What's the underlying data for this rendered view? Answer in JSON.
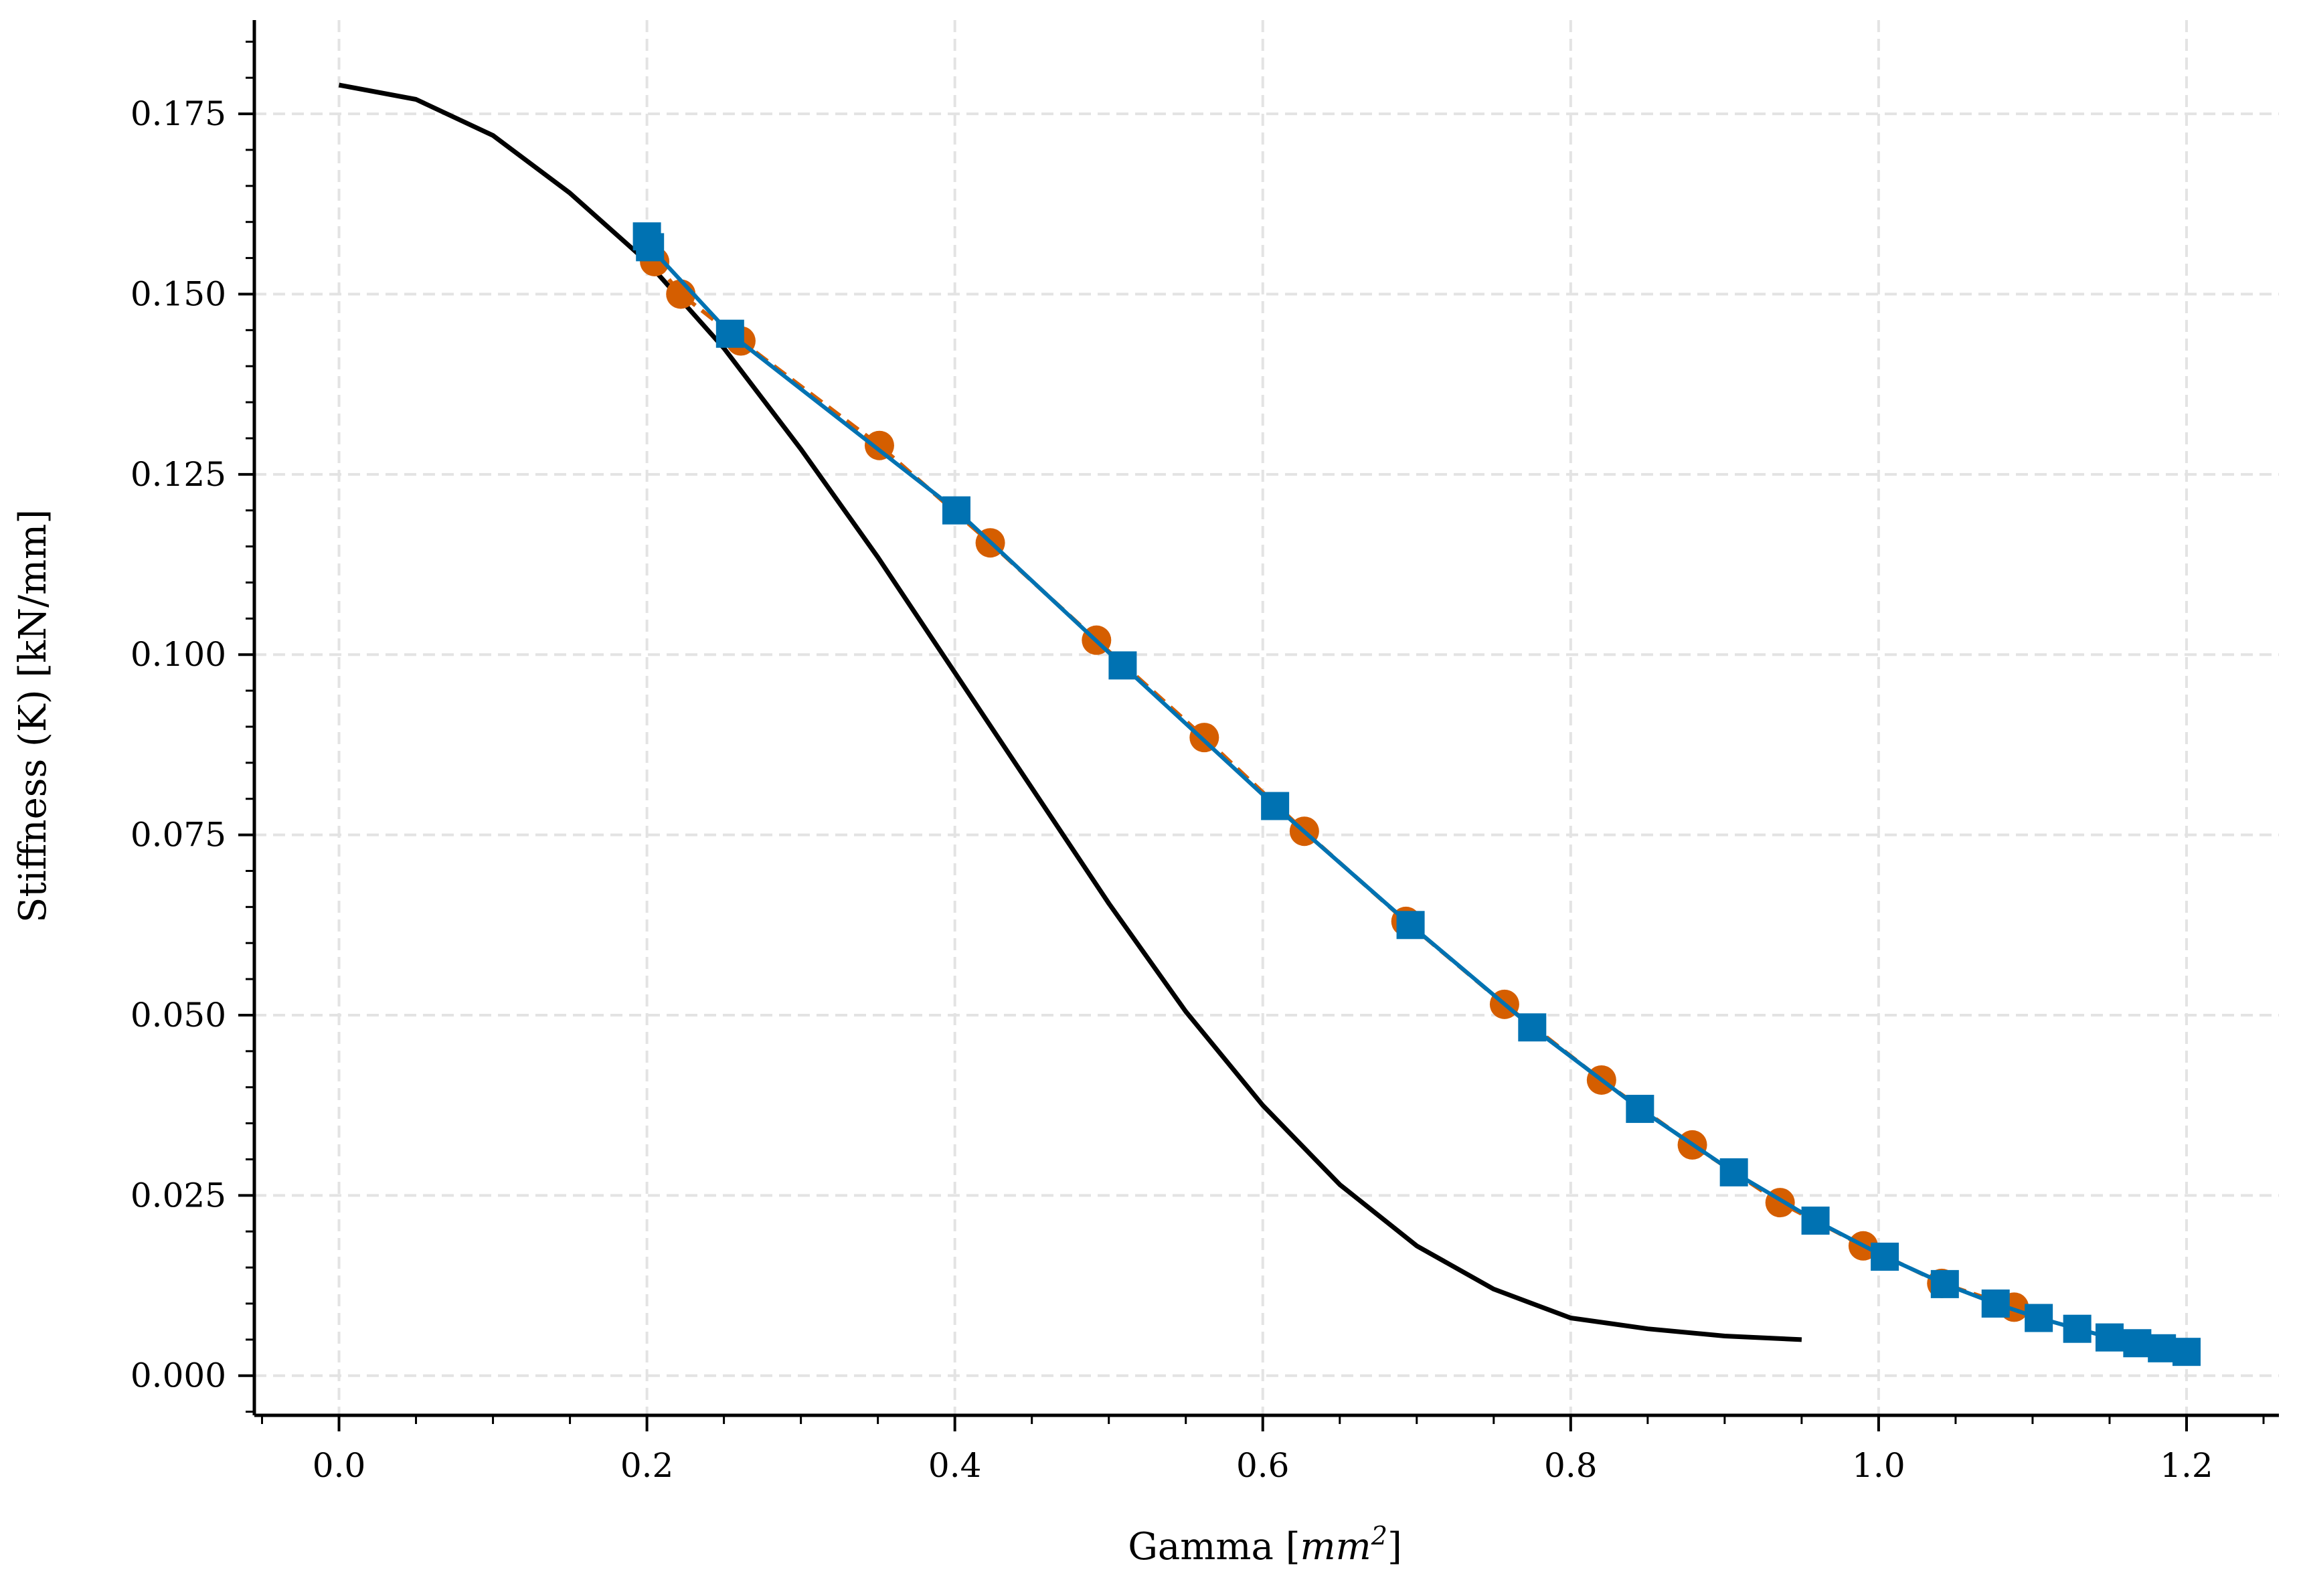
{
  "chart_data": {
    "type": "line",
    "xlabel": {
      "text": "Gamma [",
      "unit_base": "mm",
      "unit_exp": "2",
      "close": "]"
    },
    "ylabel": "Stiffness (K) [kN/mm]",
    "xlim": [
      -0.055,
      1.26
    ],
    "ylim": [
      -0.0055,
      0.188
    ],
    "grid": true,
    "xticks": [
      0.0,
      0.2,
      0.4,
      0.6,
      0.8,
      1.0,
      1.2
    ],
    "xtick_labels": [
      "0.0",
      "0.2",
      "0.4",
      "0.6",
      "0.8",
      "1.0",
      "1.2"
    ],
    "yticks": [
      0.0,
      0.025,
      0.05,
      0.075,
      0.1,
      0.125,
      0.15,
      0.175
    ],
    "ytick_labels": [
      "0.000",
      "0.025",
      "0.050",
      "0.075",
      "0.100",
      "0.125",
      "0.150",
      "0.175"
    ],
    "series": [
      {
        "style": "line",
        "color": "#000000",
        "x": [
          0.0,
          0.05,
          0.1,
          0.15,
          0.2,
          0.25,
          0.3,
          0.35,
          0.4,
          0.45,
          0.5,
          0.55,
          0.6,
          0.65,
          0.7,
          0.75,
          0.8,
          0.85,
          0.9,
          0.95
        ],
        "y": [
          0.179,
          0.177,
          0.172,
          0.164,
          0.1545,
          0.1425,
          0.1285,
          0.1135,
          0.0975,
          0.0815,
          0.0655,
          0.0505,
          0.0375,
          0.0265,
          0.018,
          0.012,
          0.008,
          0.0065,
          0.0055,
          0.005
        ]
      },
      {
        "style": "line-dashed-markers",
        "marker": "circle",
        "color": "#d55e00",
        "x": [
          0.205,
          0.222,
          0.261,
          0.351,
          0.423,
          0.492,
          0.562,
          0.627,
          0.693,
          0.757,
          0.82,
          0.879,
          0.936,
          0.99,
          1.041,
          1.088
        ],
        "y": [
          0.1545,
          0.15,
          0.1435,
          0.129,
          0.1155,
          0.102,
          0.0885,
          0.0755,
          0.063,
          0.0515,
          0.041,
          0.032,
          0.024,
          0.018,
          0.0128,
          0.0095
        ]
      },
      {
        "style": "line-markers",
        "marker": "square",
        "color": "#0072b2",
        "x": [
          0.2,
          0.202,
          0.254,
          0.401,
          0.509,
          0.608,
          0.696,
          0.775,
          0.845,
          0.906,
          0.959,
          1.004,
          1.043,
          1.076,
          1.104,
          1.129,
          1.15,
          1.168,
          1.184,
          1.2
        ],
        "y": [
          0.158,
          0.1565,
          0.1445,
          0.12,
          0.0985,
          0.079,
          0.0625,
          0.0483,
          0.037,
          0.0282,
          0.0215,
          0.0165,
          0.0127,
          0.01,
          0.008,
          0.0065,
          0.0053,
          0.0045,
          0.0038,
          0.0033
        ]
      }
    ]
  }
}
